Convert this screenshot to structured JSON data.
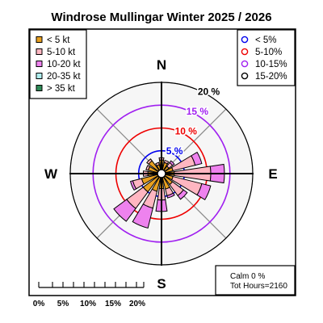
{
  "chart_data": {
    "type": "windrose",
    "title": "Windrose  Mullingar Winter 2025 / 2026",
    "compass_labels": [
      "N",
      "E",
      "S",
      "W"
    ],
    "ring_labels": [
      "5 %",
      "10 %",
      "15 %",
      "20 %"
    ],
    "ring_values": [
      5,
      10,
      15,
      20
    ],
    "ring_colors": [
      "#0000ee",
      "#ee0000",
      "#a020f0",
      "#000000"
    ],
    "scale_labels": [
      "0%",
      "5%",
      "10%",
      "15%",
      "20%"
    ],
    "speed_legend": {
      "entries": [
        "< 5  kt",
        "5-10 kt",
        "10-20 kt",
        "20-35 kt",
        "> 35 kt"
      ],
      "colors": [
        "#e8a020",
        "#ffb6c1",
        "#ee82ee",
        "#afeeee",
        "#2e8b57"
      ]
    },
    "frequency_legend": {
      "entries": [
        "< 5%",
        "5-10%",
        "10-15%",
        "15-20%"
      ],
      "colors": [
        "#0000ee",
        "#ee0000",
        "#a020f0",
        "#000000"
      ]
    },
    "calm_text": "Calm 0 %",
    "hours_text": "Tot Hours=2160",
    "sectors_degrees": [
      0,
      22.5,
      45,
      67.5,
      90,
      112.5,
      135,
      157.5,
      180,
      202.5,
      225,
      247.5,
      270,
      292.5,
      315,
      337.5
    ],
    "series": [
      {
        "name": "< 5  kt",
        "values": [
          3.0,
          2.5,
          2.0,
          2.6,
          2.8,
          2.6,
          3.0,
          3.5,
          3.3,
          4.0,
          5.0,
          4.5,
          3.0,
          3.0,
          3.5,
          2.0
        ]
      },
      {
        "name": "5-10 kt",
        "values": [
          0.5,
          0.5,
          1.0,
          5.0,
          8.0,
          6.5,
          3.0,
          1.5,
          2.5,
          3.8,
          4.5,
          2.0,
          1.0,
          0.5,
          0.5,
          0.5
        ]
      },
      {
        "name": "10-20 kt",
        "values": [
          0.0,
          0.0,
          0.5,
          1.5,
          3.0,
          2.0,
          1.0,
          0.5,
          2.5,
          4.5,
          3.5,
          0.5,
          0.0,
          0.0,
          0.0,
          0.0
        ]
      },
      {
        "name": "20-35 kt",
        "values": [
          0.0,
          0.0,
          0.0,
          0.0,
          0.0,
          0.0,
          0.0,
          0.0,
          0.0,
          0.0,
          0.0,
          0.0,
          0.0,
          0.0,
          0.0,
          0.0
        ]
      },
      {
        "name": "> 35 kt",
        "values": [
          0.0,
          0.0,
          0.0,
          0.0,
          0.0,
          0.0,
          0.0,
          0.0,
          0.0,
          0.0,
          0.0,
          0.0,
          0.0,
          0.0,
          0.0,
          0.0
        ]
      }
    ]
  }
}
